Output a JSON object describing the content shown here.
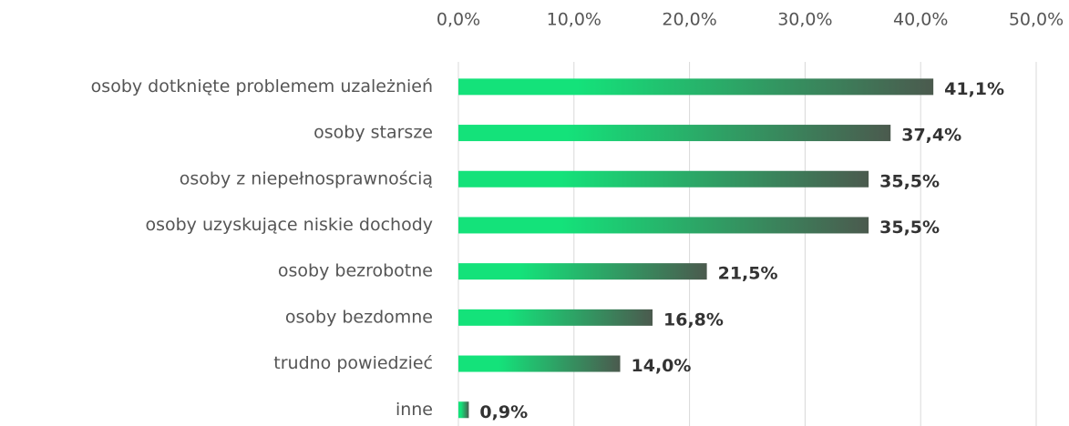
{
  "chart_data": {
    "type": "hbar",
    "categories": [
      "osoby dotknięte problemem uzależnień",
      "osoby starsze",
      "osoby z niepełnosprawnością",
      "osoby uzyskujące niskie dochody",
      "osoby bezrobotne",
      "osoby bezdomne",
      "trudno powiedzieć",
      "inne"
    ],
    "values": [
      41.1,
      37.4,
      35.5,
      35.5,
      21.5,
      16.8,
      14.0,
      0.9
    ],
    "value_labels": [
      "41,1%",
      "37,4%",
      "35,5%",
      "35,5%",
      "21,5%",
      "16,8%",
      "14,0%",
      "0,9%"
    ],
    "gradient": [
      "#14e27a",
      "#4b5a4e"
    ],
    "xlim": [
      0,
      50
    ],
    "xticks": [
      {
        "value": 0,
        "label": "0,0%"
      },
      {
        "value": 10,
        "label": "10,0%"
      },
      {
        "value": 20,
        "label": "20,0%"
      },
      {
        "value": 30,
        "label": "30,0%"
      },
      {
        "value": 40,
        "label": "40,0%"
      },
      {
        "value": 50,
        "label": "50,0%"
      }
    ],
    "grid": true
  }
}
